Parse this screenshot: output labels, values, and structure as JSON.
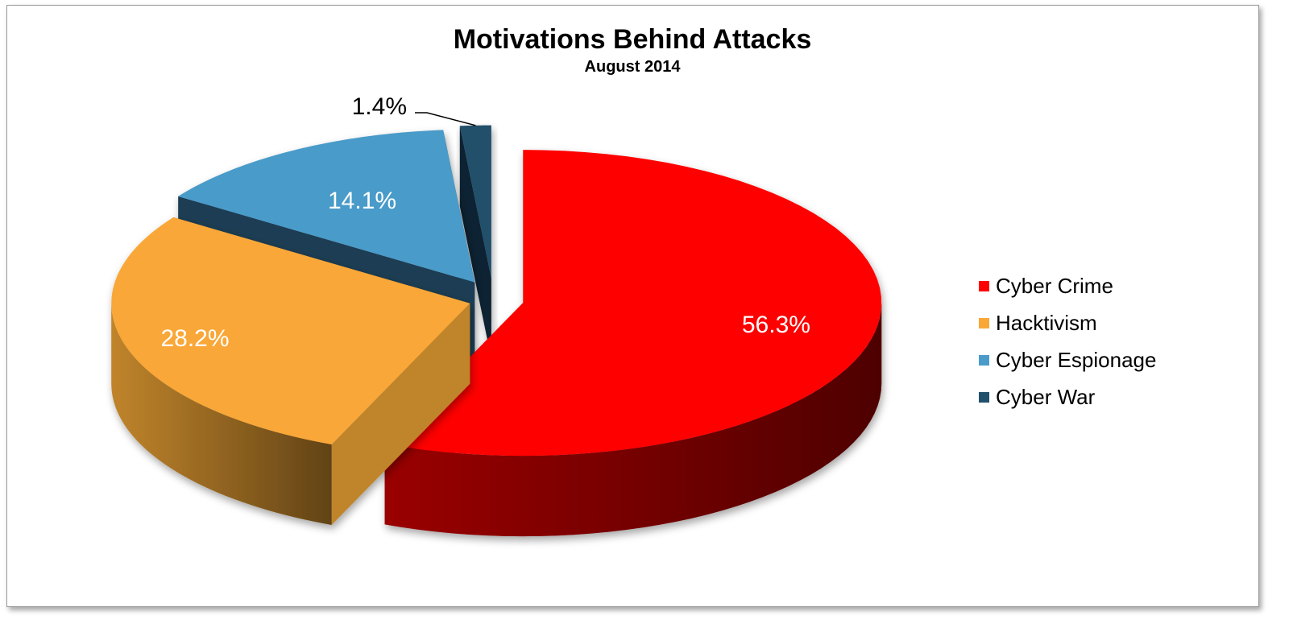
{
  "chart_data": {
    "type": "pie",
    "style": "3d-exploded",
    "title": "Motivations Behind Attacks",
    "subtitle": "August 2014",
    "legend_position": "right",
    "slices": [
      {
        "name": "Cyber Crime",
        "value": 56.3,
        "label": "56.3%",
        "color": "#fe0000",
        "side": "#9a0000"
      },
      {
        "name": "Hacktivism",
        "value": 28.2,
        "label": "28.2%",
        "color": "#f9a737",
        "side": "#c0842b"
      },
      {
        "name": "Cyber Espionage",
        "value": 14.1,
        "label": "14.1%",
        "color": "#4a9bc9",
        "side": "#1f3d52"
      },
      {
        "name": "Cyber War",
        "value": 1.4,
        "label": "1.4%",
        "color": "#21506b",
        "side": "#0f2130"
      }
    ]
  }
}
